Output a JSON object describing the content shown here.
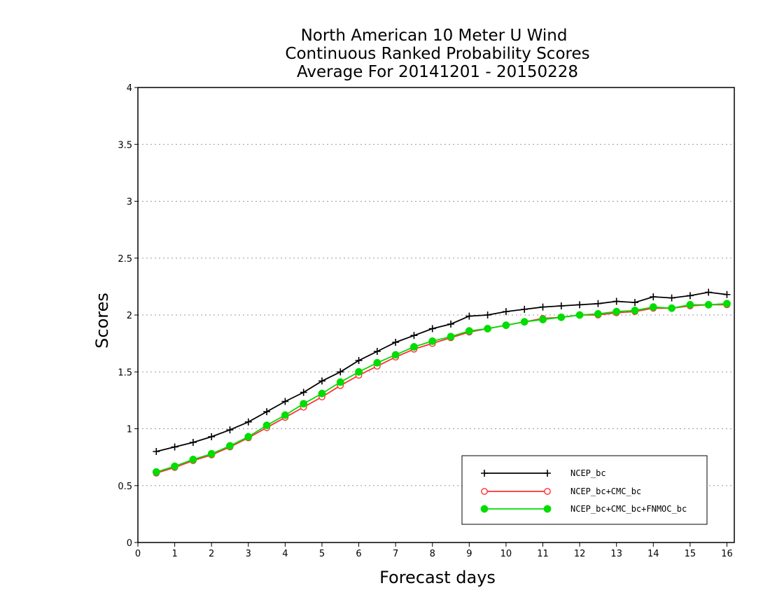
{
  "chart_data": {
    "type": "line",
    "title_lines": [
      "North American 10 Meter U Wind",
      "Continuous Ranked Probability Scores",
      "Average For 20141201 - 20150228"
    ],
    "xlabel": "Forecast days",
    "ylabel": "Scores",
    "xlim": [
      0,
      16.2
    ],
    "ylim": [
      0,
      4
    ],
    "xticks": [
      0,
      1,
      2,
      3,
      4,
      5,
      6,
      7,
      8,
      9,
      10,
      11,
      12,
      13,
      14,
      15,
      16
    ],
    "yticks": [
      0,
      0.5,
      1,
      1.5,
      2,
      2.5,
      3,
      3.5,
      4
    ],
    "ytick_labels": [
      "0",
      "0.5",
      "1",
      "1.5",
      "2",
      "2.5",
      "3",
      "3.5",
      "4"
    ],
    "grid": "horizontal dotted",
    "legend_position": "bottom-right",
    "x": [
      0.5,
      1,
      1.5,
      2,
      2.5,
      3,
      3.5,
      4,
      4.5,
      5,
      5.5,
      6,
      6.5,
      7,
      7.5,
      8,
      8.5,
      9,
      9.5,
      10,
      10.5,
      11,
      11.5,
      12,
      12.5,
      13,
      13.5,
      14,
      14.5,
      15,
      15.5,
      16
    ],
    "series": [
      {
        "name": "NCEP_bc",
        "color": "#000000",
        "marker": "plus",
        "values": [
          0.8,
          0.84,
          0.88,
          0.93,
          0.99,
          1.06,
          1.15,
          1.24,
          1.32,
          1.42,
          1.5,
          1.6,
          1.68,
          1.76,
          1.82,
          1.88,
          1.92,
          1.99,
          2.0,
          2.03,
          2.05,
          2.07,
          2.08,
          2.09,
          2.1,
          2.12,
          2.11,
          2.16,
          2.15,
          2.17,
          2.2,
          2.18
        ]
      },
      {
        "name": "NCEP_bc+CMC_bc",
        "color": "#ff3030",
        "marker": "open-circle",
        "values": [
          0.61,
          0.66,
          0.72,
          0.77,
          0.84,
          0.92,
          1.01,
          1.1,
          1.19,
          1.28,
          1.38,
          1.47,
          1.55,
          1.63,
          1.7,
          1.75,
          1.8,
          1.85,
          1.88,
          1.91,
          1.94,
          1.97,
          1.98,
          2.0,
          2.0,
          2.02,
          2.03,
          2.06,
          2.06,
          2.08,
          2.09,
          2.09
        ]
      },
      {
        "name": "NCEP_bc+CMC_bc+FNMOC_bc",
        "color": "#00dd00",
        "marker": "filled-circle",
        "values": [
          0.62,
          0.67,
          0.73,
          0.78,
          0.85,
          0.93,
          1.03,
          1.12,
          1.22,
          1.31,
          1.41,
          1.5,
          1.58,
          1.65,
          1.72,
          1.77,
          1.81,
          1.86,
          1.88,
          1.91,
          1.94,
          1.96,
          1.98,
          2.0,
          2.01,
          2.03,
          2.04,
          2.07,
          2.06,
          2.09,
          2.09,
          2.1
        ]
      }
    ]
  }
}
